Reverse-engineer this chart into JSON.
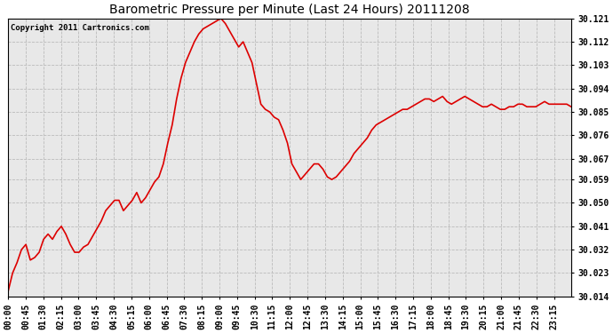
{
  "title": "Barometric Pressure per Minute (Last 24 Hours) 20111208",
  "copyright": "Copyright 2011 Cartronics.com",
  "line_color": "#dd0000",
  "background_color": "#ffffff",
  "plot_bg_color": "#e8e8e8",
  "grid_color": "#bbbbbb",
  "ylim": [
    30.014,
    30.121
  ],
  "yticks": [
    30.014,
    30.023,
    30.032,
    30.041,
    30.05,
    30.059,
    30.067,
    30.076,
    30.085,
    30.094,
    30.103,
    30.112,
    30.121
  ],
  "xtick_labels": [
    "00:00",
    "00:45",
    "01:30",
    "02:15",
    "03:00",
    "03:45",
    "04:30",
    "05:15",
    "06:00",
    "06:45",
    "07:30",
    "08:15",
    "09:00",
    "09:45",
    "10:30",
    "11:15",
    "12:00",
    "12:45",
    "13:30",
    "14:15",
    "15:00",
    "15:45",
    "16:30",
    "17:15",
    "18:00",
    "18:45",
    "19:30",
    "20:15",
    "21:00",
    "21:45",
    "22:30",
    "23:15"
  ],
  "pressure_data": [
    30.016,
    30.023,
    30.027,
    30.032,
    30.034,
    30.028,
    30.029,
    30.031,
    30.036,
    30.038,
    30.036,
    30.039,
    30.041,
    30.038,
    30.034,
    30.031,
    30.031,
    30.033,
    30.034,
    30.037,
    30.04,
    30.043,
    30.047,
    30.049,
    30.051,
    30.051,
    30.047,
    30.049,
    30.051,
    30.054,
    30.05,
    30.052,
    30.055,
    30.058,
    30.06,
    30.065,
    30.073,
    30.08,
    30.09,
    30.098,
    30.104,
    30.108,
    30.112,
    30.115,
    30.117,
    30.118,
    30.119,
    30.12,
    30.121,
    30.119,
    30.116,
    30.113,
    30.11,
    30.112,
    30.108,
    30.104,
    30.096,
    30.088,
    30.086,
    30.085,
    30.083,
    30.082,
    30.078,
    30.073,
    30.065,
    30.062,
    30.059,
    30.061,
    30.063,
    30.065,
    30.065,
    30.063,
    30.06,
    30.059,
    30.06,
    30.062,
    30.064,
    30.066,
    30.069,
    30.071,
    30.073,
    30.075,
    30.078,
    30.08,
    30.081,
    30.082,
    30.083,
    30.084,
    30.085,
    30.086,
    30.086,
    30.087,
    30.088,
    30.089,
    30.09,
    30.09,
    30.089,
    30.09,
    30.091,
    30.089,
    30.088,
    30.089,
    30.09,
    30.091,
    30.09,
    30.089,
    30.088,
    30.087,
    30.087,
    30.088,
    30.087,
    30.086,
    30.086,
    30.087,
    30.087,
    30.088,
    30.088,
    30.087,
    30.087,
    30.087,
    30.088,
    30.089,
    30.088,
    30.088,
    30.088,
    30.088,
    30.088,
    30.087
  ]
}
